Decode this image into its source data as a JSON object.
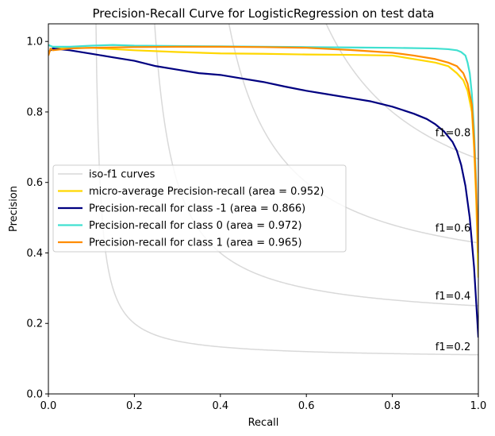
{
  "chart_data": {
    "type": "line",
    "title": "Precision-Recall Curve for LogisticRegression on test data",
    "xlabel": "Recall",
    "ylabel": "Precision",
    "xlim": [
      0.0,
      1.0
    ],
    "ylim": [
      0.0,
      1.05
    ],
    "x_ticks": [
      "0.0",
      "0.2",
      "0.4",
      "0.6",
      "0.8",
      "1.0"
    ],
    "y_ticks": [
      "0.0",
      "0.2",
      "0.4",
      "0.6",
      "0.8",
      "1.0"
    ],
    "grid": false,
    "legend_position": "center-left",
    "iso_f1": {
      "legend_label": "iso-f1 curves",
      "color": "#d9d9d9",
      "values": [
        0.2,
        0.4,
        0.6,
        0.8
      ],
      "labels": [
        "f1=0.2",
        "f1=0.4",
        "f1=0.6",
        "f1=0.8"
      ]
    },
    "series": [
      {
        "name": "micro-average Precision-recall (area = 0.952)",
        "color": "#FFD700",
        "x": [
          0.0,
          0.005,
          0.02,
          0.1,
          0.2,
          0.3,
          0.4,
          0.5,
          0.6,
          0.7,
          0.8,
          0.9,
          0.93,
          0.95,
          0.965,
          0.975,
          0.985,
          0.99,
          0.995,
          1.0
        ],
        "y": [
          0.97,
          0.975,
          0.98,
          0.982,
          0.975,
          0.97,
          0.966,
          0.965,
          0.963,
          0.962,
          0.96,
          0.94,
          0.93,
          0.91,
          0.89,
          0.86,
          0.8,
          0.7,
          0.55,
          0.33
        ]
      },
      {
        "name": "Precision-recall for class -1 (area = 0.866)",
        "color": "#000080",
        "x": [
          0.0,
          0.01,
          0.05,
          0.1,
          0.15,
          0.2,
          0.25,
          0.3,
          0.35,
          0.4,
          0.45,
          0.5,
          0.55,
          0.6,
          0.65,
          0.7,
          0.75,
          0.8,
          0.85,
          0.88,
          0.9,
          0.92,
          0.94,
          0.95,
          0.96,
          0.97,
          0.98,
          0.99,
          1.0
        ],
        "y": [
          0.97,
          0.98,
          0.975,
          0.965,
          0.955,
          0.945,
          0.93,
          0.92,
          0.91,
          0.905,
          0.895,
          0.885,
          0.872,
          0.86,
          0.85,
          0.84,
          0.83,
          0.815,
          0.795,
          0.78,
          0.765,
          0.745,
          0.715,
          0.69,
          0.65,
          0.59,
          0.5,
          0.36,
          0.16
        ]
      },
      {
        "name": "Precision-recall for class 0 (area = 0.972)",
        "color": "#40E0D0",
        "x": [
          0.0,
          0.01,
          0.05,
          0.1,
          0.15,
          0.2,
          0.3,
          0.4,
          0.5,
          0.6,
          0.7,
          0.8,
          0.9,
          0.93,
          0.95,
          0.96,
          0.97,
          0.975,
          0.98,
          0.985,
          0.99,
          0.995,
          1.0
        ],
        "y": [
          0.99,
          0.985,
          0.985,
          0.988,
          0.99,
          0.988,
          0.987,
          0.986,
          0.985,
          0.984,
          0.983,
          0.982,
          0.98,
          0.978,
          0.975,
          0.97,
          0.96,
          0.94,
          0.91,
          0.85,
          0.75,
          0.6,
          0.4
        ]
      },
      {
        "name": "Precision-recall for class 1 (area = 0.965)",
        "color": "#FF8C00",
        "x": [
          0.0,
          0.005,
          0.01,
          0.05,
          0.1,
          0.15,
          0.2,
          0.3,
          0.4,
          0.5,
          0.6,
          0.7,
          0.8,
          0.85,
          0.9,
          0.93,
          0.95,
          0.965,
          0.975,
          0.985,
          0.99,
          0.995,
          1.0
        ],
        "y": [
          0.96,
          0.98,
          0.975,
          0.98,
          0.982,
          0.983,
          0.984,
          0.985,
          0.985,
          0.984,
          0.982,
          0.976,
          0.968,
          0.96,
          0.95,
          0.94,
          0.93,
          0.91,
          0.88,
          0.82,
          0.72,
          0.58,
          0.4
        ]
      }
    ]
  }
}
